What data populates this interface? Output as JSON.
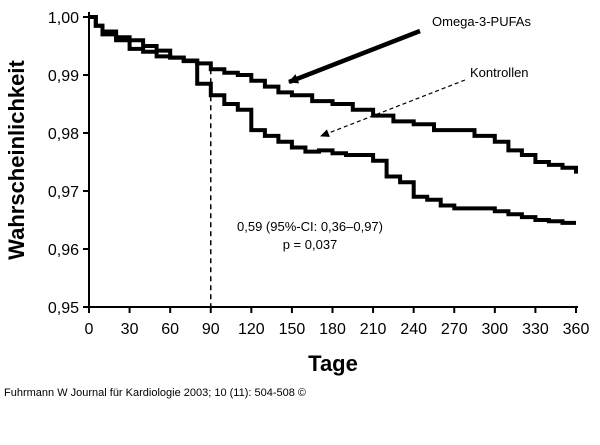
{
  "chart_data": {
    "type": "line",
    "xlabel": "Tage",
    "ylabel": "Wahrscheinlichkeit",
    "xlim": [
      0,
      360
    ],
    "ylim": [
      0.95,
      1.0
    ],
    "x_ticks": [
      0,
      30,
      60,
      90,
      120,
      150,
      180,
      210,
      240,
      270,
      300,
      330,
      360
    ],
    "x_tick_labels": [
      "0",
      "30",
      "60",
      "90",
      "120",
      "150",
      "180",
      "210",
      "240",
      "270",
      "300",
      "330",
      "360"
    ],
    "y_ticks": [
      0.95,
      0.96,
      0.97,
      0.98,
      0.99,
      1.0
    ],
    "y_tick_labels": [
      "0,95",
      "0,96",
      "0,97",
      "0,98",
      "0,99",
      "1,00"
    ],
    "grid": false,
    "series": [
      {
        "name": "Omega-3-PUFAs",
        "x": [
          0,
          5,
          10,
          20,
          30,
          40,
          50,
          60,
          70,
          80,
          90,
          100,
          110,
          120,
          130,
          140,
          150,
          165,
          180,
          195,
          210,
          225,
          240,
          255,
          270,
          285,
          300,
          310,
          320,
          330,
          340,
          350,
          360
        ],
        "values": [
          1.0,
          0.9985,
          0.9975,
          0.9965,
          0.996,
          0.995,
          0.9942,
          0.993,
          0.9924,
          0.992,
          0.991,
          0.9904,
          0.99,
          0.989,
          0.988,
          0.987,
          0.9865,
          0.9855,
          0.985,
          0.984,
          0.983,
          0.982,
          0.9815,
          0.9805,
          0.9805,
          0.9795,
          0.9785,
          0.977,
          0.9762,
          0.975,
          0.9745,
          0.974,
          0.973
        ]
      },
      {
        "name": "Kontrollen",
        "x": [
          0,
          5,
          10,
          20,
          30,
          40,
          50,
          60,
          70,
          80,
          90,
          100,
          110,
          120,
          130,
          140,
          150,
          160,
          170,
          180,
          190,
          200,
          210,
          220,
          230,
          240,
          250,
          260,
          270,
          280,
          290,
          300,
          310,
          320,
          330,
          340,
          350,
          360
        ],
        "values": [
          1.0,
          0.9985,
          0.997,
          0.996,
          0.9945,
          0.994,
          0.9932,
          0.993,
          0.9925,
          0.9885,
          0.9865,
          0.985,
          0.984,
          0.9805,
          0.9795,
          0.9785,
          0.9775,
          0.9768,
          0.977,
          0.9765,
          0.9762,
          0.9762,
          0.9752,
          0.9725,
          0.9715,
          0.969,
          0.9685,
          0.9675,
          0.967,
          0.967,
          0.967,
          0.9665,
          0.966,
          0.9655,
          0.965,
          0.9648,
          0.9645,
          0.9645
        ]
      }
    ],
    "annotations": {
      "omega_label": "Omega-3-PUFAs",
      "control_label": "Kontrollen",
      "stat_line1": "0,59 (95%-CI: 0,36–0,97)",
      "stat_line2": "p = 0,037",
      "reference_day": 90
    }
  },
  "caption": "Fuhrmann W Journal für Kardiologie 2003; 10 (11): 504-508 ©"
}
